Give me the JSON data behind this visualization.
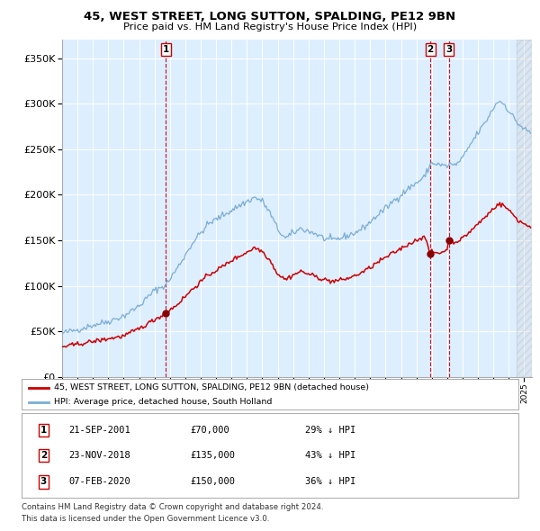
{
  "title1": "45, WEST STREET, LONG SUTTON, SPALDING, PE12 9BN",
  "title2": "Price paid vs. HM Land Registry's House Price Index (HPI)",
  "bg_color": "#ffffff",
  "plot_bg_color": "#ddeeff",
  "grid_color": "#ffffff",
  "red_line_color": "#cc0000",
  "blue_line_color": "#7aadd4",
  "sale1_date_num": 2001.73,
  "sale1_price": 70000,
  "sale2_date_num": 2018.9,
  "sale2_price": 135000,
  "sale3_date_num": 2020.1,
  "sale3_price": 150000,
  "sale_labels": [
    "1",
    "2",
    "3"
  ],
  "legend_red": "45, WEST STREET, LONG SUTTON, SPALDING, PE12 9BN (detached house)",
  "legend_blue": "HPI: Average price, detached house, South Holland",
  "table_rows": [
    [
      "1",
      "21-SEP-2001",
      "£70,000",
      "29% ↓ HPI"
    ],
    [
      "2",
      "23-NOV-2018",
      "£135,000",
      "43% ↓ HPI"
    ],
    [
      "3",
      "07-FEB-2020",
      "£150,000",
      "36% ↓ HPI"
    ]
  ],
  "footer1": "Contains HM Land Registry data © Crown copyright and database right 2024.",
  "footer2": "This data is licensed under the Open Government Licence v3.0.",
  "ylim_max": 370000,
  "xmin": 1995.0,
  "xmax": 2025.5
}
